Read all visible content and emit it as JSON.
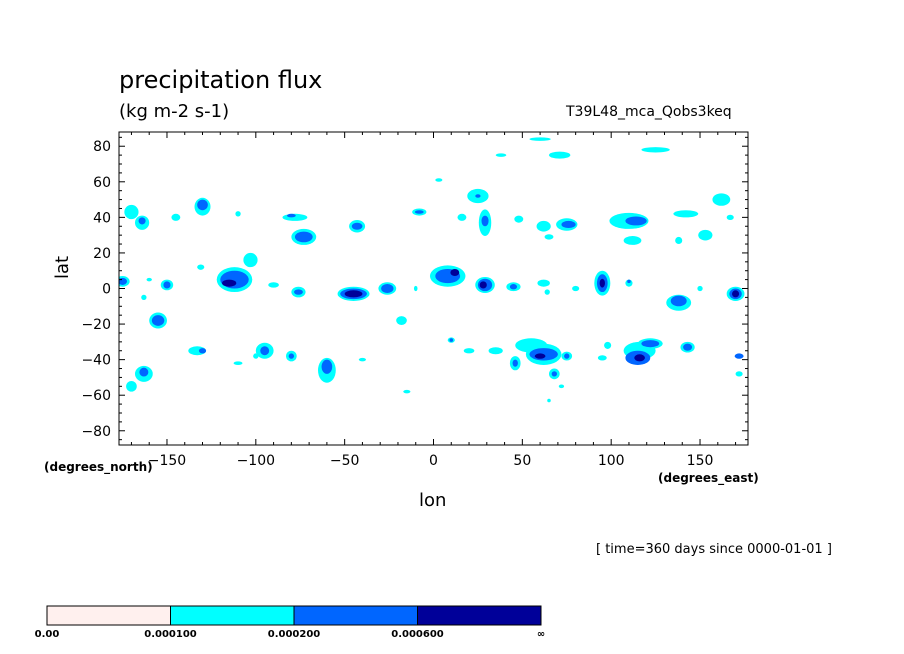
{
  "chart_data": {
    "type": "contour",
    "title": "precipitation flux",
    "units": "(kg m-2 s-1)",
    "run_label": "T39L48_mca_Qobs3keq",
    "xlabel": "lon",
    "ylabel": "lat",
    "x_unit": "(degrees_east)",
    "y_unit": "(degrees_north)",
    "time_note": "[ time=360 days since 0000-01-01 ]",
    "xlim": [
      -177,
      177
    ],
    "ylim": [
      -88,
      88
    ],
    "x_ticks": [
      -150,
      -100,
      -50,
      0,
      50,
      100,
      150
    ],
    "y_ticks": [
      -80,
      -60,
      -40,
      -20,
      0,
      20,
      40,
      60,
      80
    ],
    "levels": [
      "0.00",
      "0.000100",
      "0.000200",
      "0.000600",
      "∞"
    ],
    "level_colors": [
      "#fff0ee",
      "#00ffff",
      "#0066ff",
      "#000099"
    ],
    "cells": [
      {
        "lon": 60,
        "lat": 84,
        "w": 12,
        "h": 2,
        "level": 1
      },
      {
        "lon": 71,
        "lat": 75,
        "w": 12,
        "h": 4,
        "level": 1
      },
      {
        "lon": 125,
        "lat": 78,
        "w": 16,
        "h": 3,
        "level": 1
      },
      {
        "lon": 38,
        "lat": 75,
        "w": 6,
        "h": 2,
        "level": 1
      },
      {
        "lon": 3,
        "lat": 61,
        "w": 4,
        "h": 2,
        "level": 1
      },
      {
        "lon": 25,
        "lat": 52,
        "w": 12,
        "h": 8,
        "level": 1
      },
      {
        "lon": 25,
        "lat": 52,
        "w": 3,
        "h": 2,
        "level": 2
      },
      {
        "lon": 29,
        "lat": 37,
        "w": 7,
        "h": 15,
        "level": 1
      },
      {
        "lon": 29,
        "lat": 38,
        "w": 4,
        "h": 6,
        "level": 2
      },
      {
        "lon": 16,
        "lat": 40,
        "w": 5,
        "h": 4,
        "level": 1
      },
      {
        "lon": -8,
        "lat": 43,
        "w": 8,
        "h": 4,
        "level": 1
      },
      {
        "lon": -8,
        "lat": 43,
        "w": 5,
        "h": 2,
        "level": 2
      },
      {
        "lon": 48,
        "lat": 39,
        "w": 5,
        "h": 4,
        "level": 1
      },
      {
        "lon": 62,
        "lat": 35,
        "w": 8,
        "h": 6,
        "level": 1
      },
      {
        "lon": 75,
        "lat": 36,
        "w": 12,
        "h": 7,
        "level": 1
      },
      {
        "lon": 76,
        "lat": 36,
        "w": 8,
        "h": 4,
        "level": 2
      },
      {
        "lon": 65,
        "lat": 29,
        "w": 5,
        "h": 3,
        "level": 1
      },
      {
        "lon": 110,
        "lat": 38,
        "w": 22,
        "h": 9,
        "level": 1
      },
      {
        "lon": 114,
        "lat": 38,
        "w": 12,
        "h": 5,
        "level": 2
      },
      {
        "lon": 112,
        "lat": 27,
        "w": 10,
        "h": 5,
        "level": 1
      },
      {
        "lon": 142,
        "lat": 42,
        "w": 14,
        "h": 4,
        "level": 1
      },
      {
        "lon": 153,
        "lat": 30,
        "w": 8,
        "h": 6,
        "level": 1
      },
      {
        "lon": 162,
        "lat": 50,
        "w": 10,
        "h": 7,
        "level": 1
      },
      {
        "lon": 167,
        "lat": 40,
        "w": 4,
        "h": 3,
        "level": 1
      },
      {
        "lon": 138,
        "lat": 27,
        "w": 4,
        "h": 4,
        "level": 1
      },
      {
        "lon": -170,
        "lat": 43,
        "w": 8,
        "h": 8,
        "level": 1
      },
      {
        "lon": -164,
        "lat": 37,
        "w": 8,
        "h": 8,
        "level": 1
      },
      {
        "lon": -164,
        "lat": 38,
        "w": 4,
        "h": 4,
        "level": 2
      },
      {
        "lon": -145,
        "lat": 40,
        "w": 5,
        "h": 4,
        "level": 1
      },
      {
        "lon": -130,
        "lat": 46,
        "w": 9,
        "h": 10,
        "level": 1
      },
      {
        "lon": -130,
        "lat": 47,
        "w": 6,
        "h": 6,
        "level": 2
      },
      {
        "lon": -110,
        "lat": 42,
        "w": 3,
        "h": 3,
        "level": 1
      },
      {
        "lon": -78,
        "lat": 40,
        "w": 14,
        "h": 4,
        "level": 1
      },
      {
        "lon": -80,
        "lat": 41,
        "w": 5,
        "h": 2,
        "level": 2
      },
      {
        "lon": -73,
        "lat": 29,
        "w": 14,
        "h": 9,
        "level": 1
      },
      {
        "lon": -73,
        "lat": 29,
        "w": 10,
        "h": 6,
        "level": 2
      },
      {
        "lon": -43,
        "lat": 35,
        "w": 9,
        "h": 7,
        "level": 1
      },
      {
        "lon": -43,
        "lat": 35,
        "w": 6,
        "h": 4,
        "level": 2
      },
      {
        "lon": -112,
        "lat": 5,
        "w": 20,
        "h": 14,
        "level": 1
      },
      {
        "lon": -103,
        "lat": 16,
        "w": 8,
        "h": 8,
        "level": 1
      },
      {
        "lon": -112,
        "lat": 5,
        "w": 16,
        "h": 10,
        "level": 2
      },
      {
        "lon": -115,
        "lat": 3,
        "w": 8,
        "h": 4,
        "level": 3
      },
      {
        "lon": -131,
        "lat": 12,
        "w": 4,
        "h": 3,
        "level": 1
      },
      {
        "lon": -175,
        "lat": 4,
        "w": 8,
        "h": 6,
        "level": 1
      },
      {
        "lon": -175,
        "lat": 4,
        "w": 5,
        "h": 4,
        "level": 2
      },
      {
        "lon": -160,
        "lat": 5,
        "w": 3,
        "h": 2,
        "level": 1
      },
      {
        "lon": -150,
        "lat": 2,
        "w": 7,
        "h": 6,
        "level": 1
      },
      {
        "lon": -150,
        "lat": 2,
        "w": 4,
        "h": 4,
        "level": 2
      },
      {
        "lon": -163,
        "lat": -5,
        "w": 3,
        "h": 3,
        "level": 1
      },
      {
        "lon": -90,
        "lat": 2,
        "w": 6,
        "h": 3,
        "level": 1
      },
      {
        "lon": -76,
        "lat": -2,
        "w": 8,
        "h": 6,
        "level": 1
      },
      {
        "lon": -76,
        "lat": -2,
        "w": 5,
        "h": 3,
        "level": 2
      },
      {
        "lon": -45,
        "lat": -3,
        "w": 18,
        "h": 8,
        "level": 1
      },
      {
        "lon": -45,
        "lat": -3,
        "w": 15,
        "h": 6,
        "level": 2
      },
      {
        "lon": -45,
        "lat": -3,
        "w": 10,
        "h": 4,
        "level": 3
      },
      {
        "lon": -26,
        "lat": 0,
        "w": 10,
        "h": 7,
        "level": 1
      },
      {
        "lon": -26,
        "lat": 0,
        "w": 7,
        "h": 5,
        "level": 2
      },
      {
        "lon": -10,
        "lat": 0,
        "w": 2,
        "h": 3,
        "level": 1
      },
      {
        "lon": 8,
        "lat": 7,
        "w": 20,
        "h": 12,
        "level": 1
      },
      {
        "lon": 8,
        "lat": 7,
        "w": 14,
        "h": 8,
        "level": 2
      },
      {
        "lon": 12,
        "lat": 9,
        "w": 5,
        "h": 4,
        "level": 3
      },
      {
        "lon": 29,
        "lat": 2,
        "w": 11,
        "h": 9,
        "level": 1
      },
      {
        "lon": 29,
        "lat": 2,
        "w": 8,
        "h": 7,
        "level": 2
      },
      {
        "lon": 28,
        "lat": 2,
        "w": 4,
        "h": 4,
        "level": 3
      },
      {
        "lon": 45,
        "lat": 1,
        "w": 8,
        "h": 5,
        "level": 1
      },
      {
        "lon": 45,
        "lat": 1,
        "w": 4,
        "h": 3,
        "level": 2
      },
      {
        "lon": 62,
        "lat": 3,
        "w": 7,
        "h": 4,
        "level": 1
      },
      {
        "lon": 64,
        "lat": -2,
        "w": 3,
        "h": 3,
        "level": 1
      },
      {
        "lon": 95,
        "lat": 3,
        "w": 9,
        "h": 14,
        "level": 1
      },
      {
        "lon": 95,
        "lat": 3,
        "w": 6,
        "h": 10,
        "level": 2
      },
      {
        "lon": 95,
        "lat": 3,
        "w": 3,
        "h": 5,
        "level": 3
      },
      {
        "lon": 80,
        "lat": 0,
        "w": 4,
        "h": 3,
        "level": 1
      },
      {
        "lon": 110,
        "lat": 3,
        "w": 4,
        "h": 4,
        "level": 1
      },
      {
        "lon": 110,
        "lat": 4,
        "w": 2,
        "h": 2,
        "level": 2
      },
      {
        "lon": 138,
        "lat": -8,
        "w": 14,
        "h": 9,
        "level": 1
      },
      {
        "lon": 138,
        "lat": -7,
        "w": 9,
        "h": 6,
        "level": 2
      },
      {
        "lon": 150,
        "lat": 0,
        "w": 3,
        "h": 3,
        "level": 1
      },
      {
        "lon": 170,
        "lat": -3,
        "w": 10,
        "h": 8,
        "level": 1
      },
      {
        "lon": 170,
        "lat": -3,
        "w": 7,
        "h": 6,
        "level": 2
      },
      {
        "lon": 170,
        "lat": -3,
        "w": 4,
        "h": 4,
        "level": 3
      },
      {
        "lon": -155,
        "lat": -18,
        "w": 10,
        "h": 9,
        "level": 1
      },
      {
        "lon": -155,
        "lat": -18,
        "w": 7,
        "h": 6,
        "level": 2
      },
      {
        "lon": -133,
        "lat": -35,
        "w": 10,
        "h": 5,
        "level": 1
      },
      {
        "lon": -130,
        "lat": -35,
        "w": 4,
        "h": 3,
        "level": 2
      },
      {
        "lon": -95,
        "lat": -35,
        "w": 10,
        "h": 9,
        "level": 1
      },
      {
        "lon": -95,
        "lat": -35,
        "w": 5,
        "h": 5,
        "level": 2
      },
      {
        "lon": -110,
        "lat": -42,
        "w": 5,
        "h": 2,
        "level": 1
      },
      {
        "lon": -100,
        "lat": -38,
        "w": 3,
        "h": 3,
        "level": 1
      },
      {
        "lon": -80,
        "lat": -38,
        "w": 6,
        "h": 6,
        "level": 1
      },
      {
        "lon": -80,
        "lat": -38,
        "w": 3,
        "h": 3,
        "level": 2
      },
      {
        "lon": -60,
        "lat": -46,
        "w": 10,
        "h": 14,
        "level": 1
      },
      {
        "lon": -60,
        "lat": -44,
        "w": 6,
        "h": 8,
        "level": 2
      },
      {
        "lon": -163,
        "lat": -48,
        "w": 10,
        "h": 9,
        "level": 1
      },
      {
        "lon": -170,
        "lat": -55,
        "w": 6,
        "h": 6,
        "level": 1
      },
      {
        "lon": -163,
        "lat": -47,
        "w": 5,
        "h": 5,
        "level": 2
      },
      {
        "lon": -40,
        "lat": -40,
        "w": 4,
        "h": 2,
        "level": 1
      },
      {
        "lon": -18,
        "lat": -18,
        "w": 6,
        "h": 5,
        "level": 1
      },
      {
        "lon": 10,
        "lat": -29,
        "w": 4,
        "h": 3,
        "level": 1
      },
      {
        "lon": 10,
        "lat": -29,
        "w": 2,
        "h": 2,
        "level": 2
      },
      {
        "lon": 20,
        "lat": -35,
        "w": 6,
        "h": 3,
        "level": 1
      },
      {
        "lon": 35,
        "lat": -35,
        "w": 8,
        "h": 4,
        "level": 1
      },
      {
        "lon": 46,
        "lat": -42,
        "w": 6,
        "h": 8,
        "level": 1
      },
      {
        "lon": 46,
        "lat": -42,
        "w": 3,
        "h": 4,
        "level": 2
      },
      {
        "lon": 55,
        "lat": -32,
        "w": 18,
        "h": 8,
        "level": 1
      },
      {
        "lon": 62,
        "lat": -37,
        "w": 20,
        "h": 12,
        "level": 1
      },
      {
        "lon": 62,
        "lat": -37,
        "w": 16,
        "h": 7,
        "level": 2
      },
      {
        "lon": 60,
        "lat": -38,
        "w": 6,
        "h": 3,
        "level": 3
      },
      {
        "lon": 75,
        "lat": -38,
        "w": 6,
        "h": 5,
        "level": 1
      },
      {
        "lon": 75,
        "lat": -38,
        "w": 3,
        "h": 3,
        "level": 2
      },
      {
        "lon": 68,
        "lat": -48,
        "w": 6,
        "h": 6,
        "level": 1
      },
      {
        "lon": 68,
        "lat": -48,
        "w": 3,
        "h": 3,
        "level": 2
      },
      {
        "lon": 98,
        "lat": -32,
        "w": 4,
        "h": 4,
        "level": 1
      },
      {
        "lon": 95,
        "lat": -39,
        "w": 5,
        "h": 3,
        "level": 1
      },
      {
        "lon": 116,
        "lat": -35,
        "w": 18,
        "h": 10,
        "level": 1
      },
      {
        "lon": 115,
        "lat": -39,
        "w": 14,
        "h": 8,
        "level": 2
      },
      {
        "lon": 116,
        "lat": -39,
        "w": 6,
        "h": 4,
        "level": 3
      },
      {
        "lon": 122,
        "lat": -31,
        "w": 14,
        "h": 6,
        "level": 1
      },
      {
        "lon": 122,
        "lat": -31,
        "w": 10,
        "h": 4,
        "level": 2
      },
      {
        "lon": 143,
        "lat": -33,
        "w": 8,
        "h": 6,
        "level": 1
      },
      {
        "lon": 143,
        "lat": -33,
        "w": 5,
        "h": 4,
        "level": 2
      },
      {
        "lon": 172,
        "lat": -38,
        "w": 5,
        "h": 3,
        "level": 2
      },
      {
        "lon": 172,
        "lat": -48,
        "w": 4,
        "h": 3,
        "level": 1
      },
      {
        "lon": 72,
        "lat": -55,
        "w": 3,
        "h": 2,
        "level": 1
      },
      {
        "lon": 65,
        "lat": -63,
        "w": 2,
        "h": 2,
        "level": 1
      },
      {
        "lon": -15,
        "lat": -58,
        "w": 4,
        "h": 2,
        "level": 1
      }
    ]
  }
}
